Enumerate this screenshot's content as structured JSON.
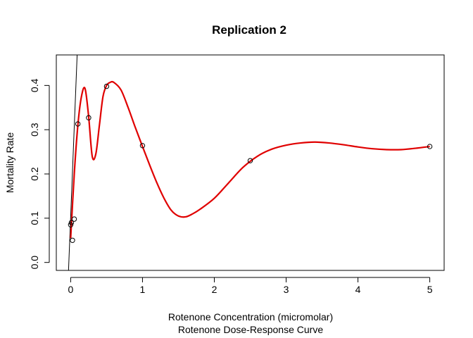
{
  "chart_data": {
    "type": "scatter",
    "title": "Replication 2",
    "xlabel": "Rotenone Concentration (micromolar)",
    "subtitle": "Rotenone Dose-Response Curve",
    "ylabel": "Mortality Rate",
    "xlim": [
      -0.2,
      5.2
    ],
    "ylim": [
      -0.018,
      0.469
    ],
    "x_ticks": [
      "0",
      "1",
      "2",
      "3",
      "4",
      "5"
    ],
    "y_ticks": [
      "0.0",
      "0.1",
      "0.2",
      "0.3",
      "0.4"
    ],
    "points": [
      {
        "x": 0.0,
        "y": 0.085
      },
      {
        "x": 0.01,
        "y": 0.09
      },
      {
        "x": 0.025,
        "y": 0.05
      },
      {
        "x": 0.05,
        "y": 0.098
      },
      {
        "x": 0.1,
        "y": 0.313
      },
      {
        "x": 0.25,
        "y": 0.327
      },
      {
        "x": 0.5,
        "y": 0.398
      },
      {
        "x": 1.0,
        "y": 0.264
      },
      {
        "x": 2.5,
        "y": 0.23
      },
      {
        "x": 5.0,
        "y": 0.262
      }
    ],
    "fitted_curve": {
      "color": "#e00000",
      "x": [
        0.0,
        0.05,
        0.1,
        0.15,
        0.2,
        0.25,
        0.3,
        0.35,
        0.4,
        0.45,
        0.5,
        0.55,
        0.6,
        0.7,
        0.8,
        0.9,
        1.0,
        1.1,
        1.2,
        1.3,
        1.4,
        1.5,
        1.6,
        1.7,
        1.8,
        2.0,
        2.2,
        2.4,
        2.6,
        2.8,
        3.0,
        3.2,
        3.4,
        3.6,
        3.8,
        4.0,
        4.2,
        4.4,
        4.6,
        4.8,
        5.0
      ],
      "y": [
        0.055,
        0.2,
        0.31,
        0.375,
        0.393,
        0.33,
        0.24,
        0.245,
        0.31,
        0.375,
        0.4,
        0.407,
        0.407,
        0.39,
        0.35,
        0.305,
        0.262,
        0.22,
        0.18,
        0.145,
        0.118,
        0.105,
        0.103,
        0.11,
        0.12,
        0.145,
        0.18,
        0.215,
        0.24,
        0.256,
        0.265,
        0.27,
        0.272,
        0.27,
        0.266,
        0.261,
        0.257,
        0.255,
        0.255,
        0.258,
        0.262
      ]
    },
    "reference_line": {
      "color": "#000000",
      "x": [
        -0.03,
        0.09
      ],
      "y": [
        -0.018,
        0.469
      ]
    },
    "grid": false,
    "legend": "none"
  }
}
